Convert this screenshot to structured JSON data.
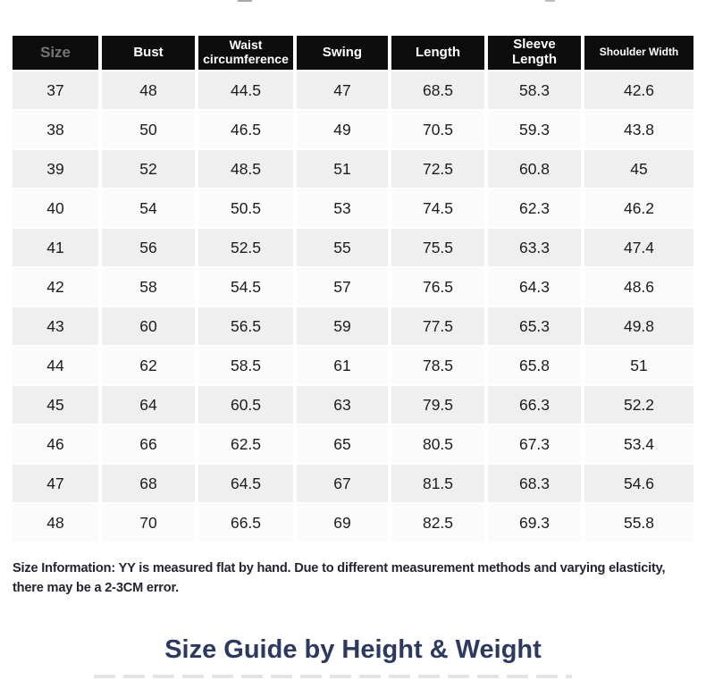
{
  "table": {
    "headers": [
      "Size",
      "Bust",
      "Waist circumference",
      "Swing",
      "Length",
      "Sleeve Length",
      "Shoulder Width"
    ],
    "rows": [
      [
        "37",
        "48",
        "44.5",
        "47",
        "68.5",
        "58.3",
        "42.6"
      ],
      [
        "38",
        "50",
        "46.5",
        "49",
        "70.5",
        "59.3",
        "43.8"
      ],
      [
        "39",
        "52",
        "48.5",
        "51",
        "72.5",
        "60.8",
        "45"
      ],
      [
        "40",
        "54",
        "50.5",
        "53",
        "74.5",
        "62.3",
        "46.2"
      ],
      [
        "41",
        "56",
        "52.5",
        "55",
        "75.5",
        "63.3",
        "47.4"
      ],
      [
        "42",
        "58",
        "54.5",
        "57",
        "76.5",
        "64.3",
        "48.6"
      ],
      [
        "43",
        "60",
        "56.5",
        "59",
        "77.5",
        "65.3",
        "49.8"
      ],
      [
        "44",
        "62",
        "58.5",
        "61",
        "78.5",
        "65.8",
        "51"
      ],
      [
        "45",
        "64",
        "60.5",
        "63",
        "79.5",
        "66.3",
        "52.2"
      ],
      [
        "46",
        "66",
        "62.5",
        "65",
        "80.5",
        "67.3",
        "53.4"
      ],
      [
        "47",
        "68",
        "64.5",
        "67",
        "81.5",
        "68.3",
        "54.6"
      ],
      [
        "48",
        "70",
        "66.5",
        "69",
        "82.5",
        "69.3",
        "55.8"
      ]
    ]
  },
  "note": {
    "text": "Size Information: YY is measured flat by hand. Due to different measurement methods and varying elasticity, there may be a 2-3CM error."
  },
  "section": {
    "title": "Size Guide by Height & Weight"
  },
  "colors": {
    "header_bg": "#0d0d0d",
    "header_text": "#ffffff",
    "size_header_text": "#757575",
    "row_gray": "#efefef",
    "row_light": "#fbfbfb",
    "note_text": "#272331",
    "title_text": "#2c3a63"
  }
}
